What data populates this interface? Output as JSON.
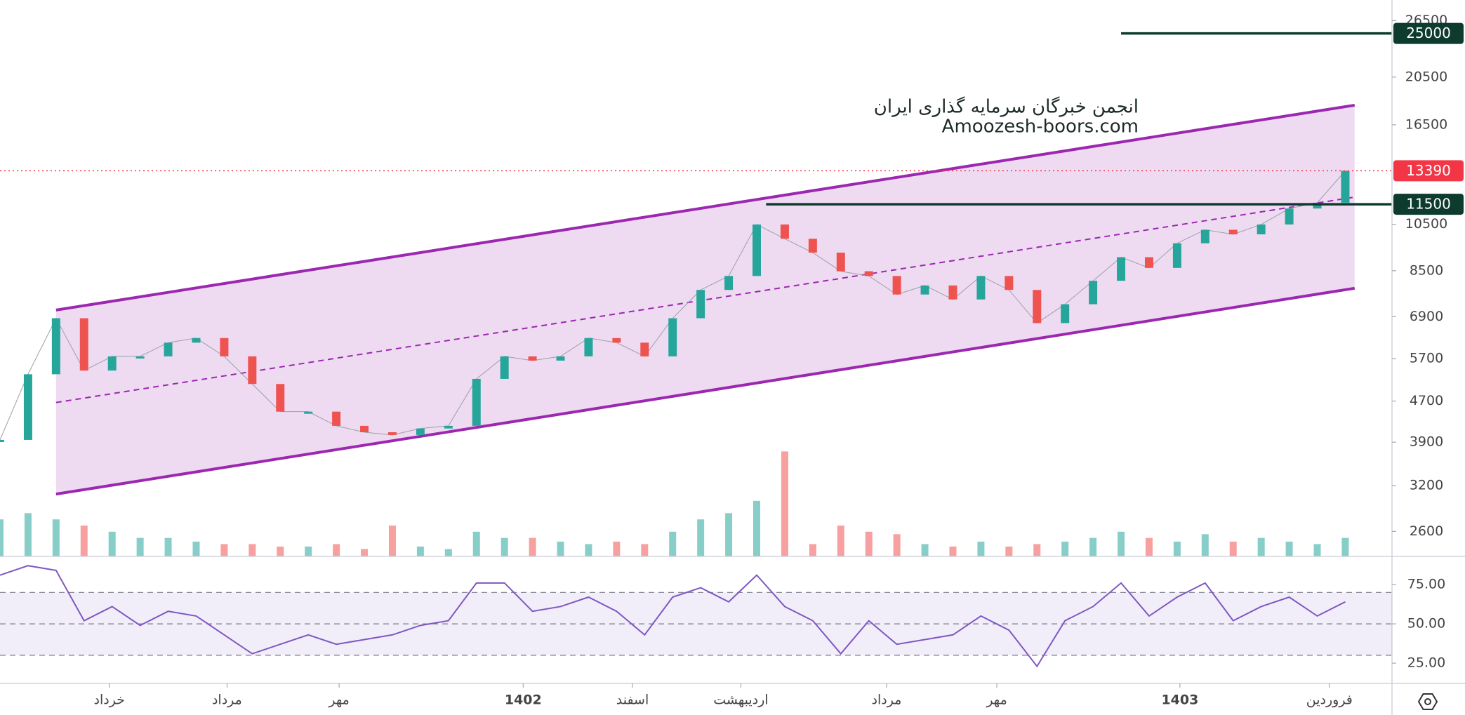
{
  "chart_data": [
    {
      "type": "candle",
      "x": [
        0,
        3,
        6,
        9,
        12,
        15,
        18,
        21,
        24,
        27,
        30,
        33,
        36,
        39,
        42,
        45,
        48,
        51,
        54,
        57,
        60,
        63,
        66,
        69,
        72,
        75,
        78,
        81,
        84,
        87,
        90,
        93,
        96,
        99,
        102,
        105,
        108,
        111,
        114,
        117,
        120,
        123,
        126,
        129,
        132,
        135,
        138,
        141,
        144
      ],
      "values": [
        3940,
        5310,
        6850,
        5400,
        5760,
        5760,
        6130,
        6260,
        5760,
        5080,
        4480,
        4480,
        4200,
        4080,
        4030,
        4150,
        4200,
        5200,
        5760,
        5650,
        5760,
        6260,
        6130,
        5760,
        6850,
        7790,
        8300,
        10490,
        9830,
        9230,
        8480,
        8300,
        7630,
        7950,
        7460,
        8300,
        7790,
        6700,
        7300,
        8120,
        9040,
        8610,
        9630,
        10240,
        10030,
        10490,
        11280,
        11580,
        13390
      ],
      "up_color": "#26a69a",
      "down_color": "#ef5350",
      "log_scale": true,
      "ylim": [
        2320,
        29100
      ],
      "yticks": [
        26500,
        20500,
        16500,
        10500,
        8500,
        6900,
        5700,
        4700,
        3900,
        3200,
        2600
      ],
      "channels": [
        {
          "x": [
            6,
            145
          ],
          "values": [
            7110,
            18040
          ],
          "dashed": false
        },
        {
          "x": [
            6,
            145
          ],
          "values": [
            3080,
            7850
          ],
          "dashed": false
        },
        {
          "x": [
            6,
            145
          ],
          "values": [
            4670,
            11880
          ],
          "dashed": true
        }
      ],
      "channel_color": "#9c27b0",
      "levels": [
        {
          "value": 25000,
          "x": 120,
          "color": "#0d3b2e",
          "dotted": false
        },
        {
          "value": 11500,
          "x": 82,
          "color": "#0d3b2e",
          "dotted": false
        },
        {
          "value": 13390,
          "x": 0,
          "color": "#f23645",
          "dotted": true
        }
      ],
      "watermark": [
        "انجمن خبرگان سرمایه گذاری ایران",
        "Amoozesh-boors.com"
      ]
    },
    {
      "type": "volume",
      "x": [
        0,
        3,
        6,
        9,
        12,
        15,
        18,
        21,
        24,
        27,
        30,
        33,
        36,
        39,
        42,
        45,
        48,
        51,
        54,
        57,
        60,
        63,
        66,
        69,
        72,
        75,
        78,
        81,
        84,
        87,
        90,
        93,
        96,
        99,
        102,
        105,
        108,
        111,
        114,
        117,
        120,
        123,
        126,
        129,
        132,
        135,
        138,
        141,
        144
      ],
      "values": [
        30,
        35,
        30,
        25,
        20,
        15,
        15,
        12,
        10,
        10,
        8,
        8,
        10,
        6,
        25,
        8,
        6,
        20,
        15,
        15,
        12,
        10,
        12,
        10,
        20,
        30,
        35,
        45,
        85,
        10,
        25,
        20,
        18,
        10,
        8,
        12,
        8,
        10,
        12,
        15,
        20,
        15,
        12,
        18,
        12,
        15,
        12,
        10,
        15
      ]
    },
    {
      "type": "line",
      "x": [
        0,
        3,
        6,
        9,
        12,
        15,
        18,
        21,
        24,
        27,
        30,
        33,
        36,
        39,
        42,
        45,
        48,
        51,
        54,
        57,
        60,
        63,
        66,
        69,
        72,
        75,
        78,
        81,
        84,
        87,
        90,
        93,
        96,
        99,
        102,
        105,
        108,
        111,
        114,
        117,
        120,
        123,
        126,
        129,
        132,
        135,
        138,
        141,
        144
      ],
      "values": [
        81,
        87,
        84,
        52,
        61,
        49,
        58,
        55,
        43,
        31,
        37,
        43,
        37,
        40,
        43,
        49,
        52,
        76,
        76,
        58,
        61,
        67,
        58,
        43,
        67,
        73,
        64,
        81,
        61,
        52,
        31,
        52,
        37,
        40,
        43,
        55,
        46,
        23,
        52,
        61,
        76,
        55,
        67,
        76,
        52,
        61,
        67,
        55,
        64
      ],
      "color": "#7e57c2",
      "ylim": [
        13,
        92
      ],
      "yticks": [
        {
          "value": 75,
          "label": "75.00"
        },
        {
          "value": 50,
          "label": "50.00"
        },
        {
          "value": 25,
          "label": "25.00"
        }
      ],
      "band": [
        30,
        70
      ],
      "midline": 50,
      "xlim": [
        0,
        149
      ],
      "xticks": [
        {
          "value": 11.7,
          "label": "خرداد"
        },
        {
          "value": 24.3,
          "label": "مرداد"
        },
        {
          "value": 36.3,
          "label": "مهر"
        },
        {
          "value": 56,
          "label": "1402"
        },
        {
          "value": 67.7,
          "label": "اسفند"
        },
        {
          "value": 79.3,
          "label": "اردیبهشت"
        },
        {
          "value": 94.9,
          "label": "مرداد"
        },
        {
          "value": 106.7,
          "label": "مهر"
        },
        {
          "value": 126.3,
          "label": "1403"
        },
        {
          "value": 142.3,
          "label": "فروردین"
        }
      ]
    }
  ]
}
